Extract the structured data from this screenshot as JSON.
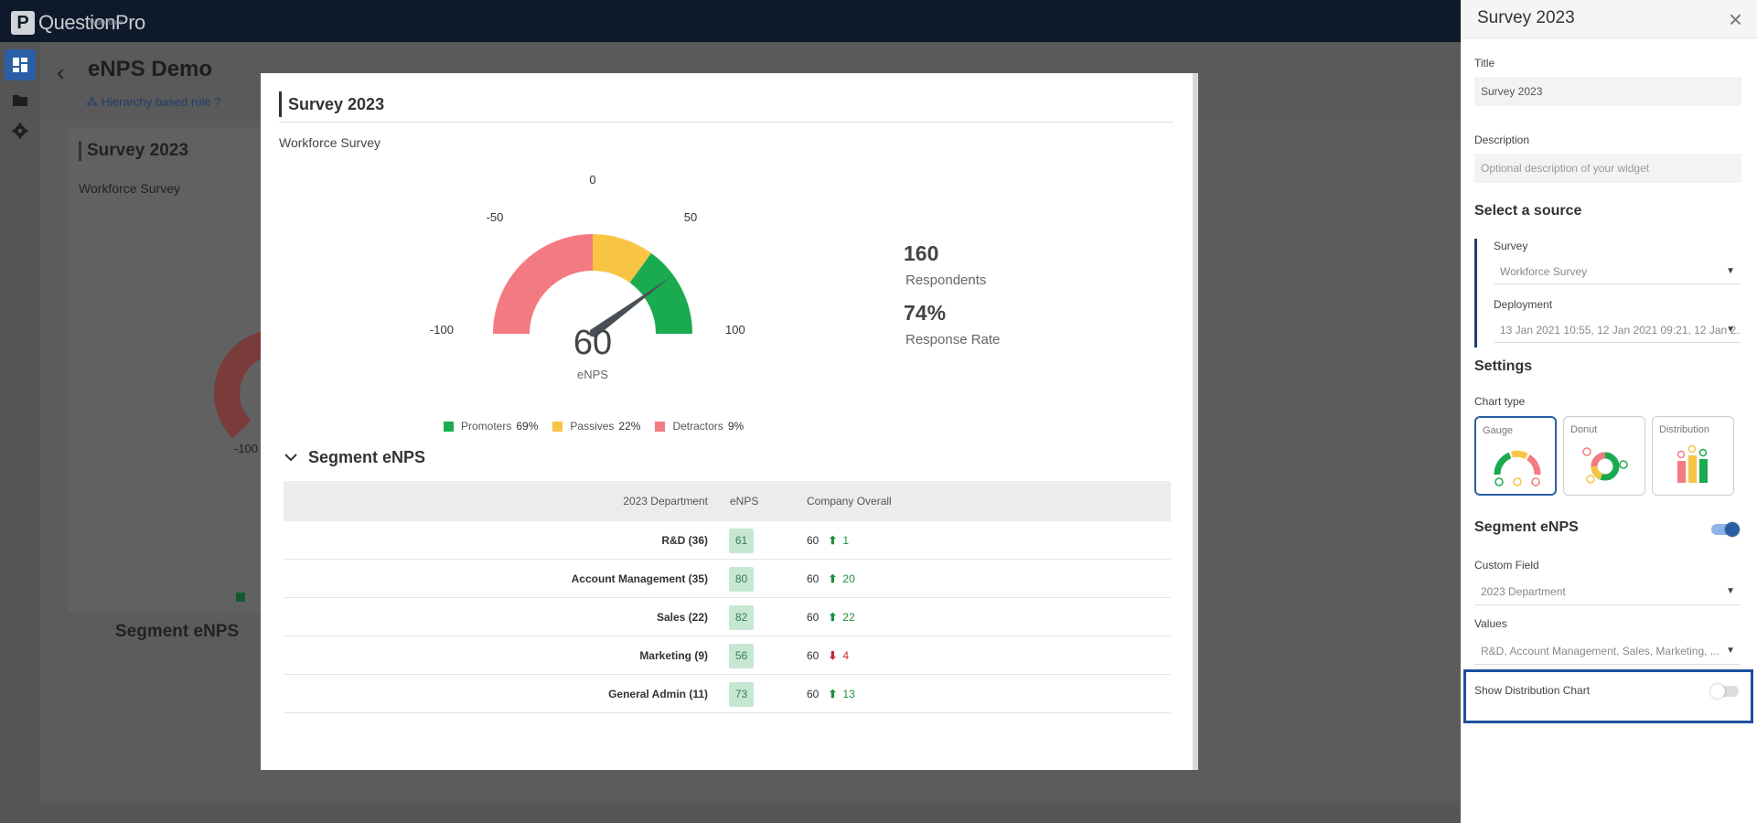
{
  "app": {
    "logo_letter": "P",
    "logo_text": "QuestionPro",
    "logo_sub": "Workforce"
  },
  "background": {
    "page_title": "eNPS Demo",
    "rule_link": "Hierarchy based rule",
    "card_title": "Survey 2023",
    "card_subtitle": "Workforce Survey",
    "label_100": "-100",
    "segment_title": "Segment eNPS"
  },
  "modal": {
    "title": "Survey 2023",
    "subtitle": "Workforce Survey",
    "gauge": {
      "value": "60",
      "value_label": "eNPS",
      "ticks": {
        "m100": "-100",
        "m50": "-50",
        "zero": "0",
        "p50": "50",
        "p100": "100"
      },
      "colors": {
        "detractors": "#f47a82",
        "passives": "#f8c443",
        "promoters": "#1aab50",
        "needle": "#4a4f57"
      }
    },
    "stats": {
      "respondents_value": "160",
      "respondents_label": "Respondents",
      "response_rate_value": "74%",
      "response_rate_label": "Response Rate"
    },
    "legend": [
      {
        "label": "Promoters",
        "value": "69%",
        "color": "#1aab50"
      },
      {
        "label": "Passives",
        "value": "22%",
        "color": "#f8c443"
      },
      {
        "label": "Detractors",
        "value": "9%",
        "color": "#f47a82"
      }
    ],
    "segment": {
      "title": "Segment eNPS",
      "headers": {
        "dept": "2023 Department",
        "enps": "eNPS",
        "company": "Company Overall"
      },
      "rows": [
        {
          "dept": "R&D (36)",
          "enps": "61",
          "company": "60",
          "dir": "up",
          "delta": "1"
        },
        {
          "dept": "Account Management (35)",
          "enps": "80",
          "company": "60",
          "dir": "up",
          "delta": "20"
        },
        {
          "dept": "Sales (22)",
          "enps": "82",
          "company": "60",
          "dir": "up",
          "delta": "22"
        },
        {
          "dept": "Marketing (9)",
          "enps": "56",
          "company": "60",
          "dir": "down",
          "delta": "4"
        },
        {
          "dept": "General Admin (11)",
          "enps": "73",
          "company": "60",
          "dir": "up",
          "delta": "13"
        }
      ]
    }
  },
  "panel": {
    "title": "Survey 2023",
    "title_label": "Title",
    "title_value": "Survey 2023",
    "description_label": "Description",
    "description_placeholder": "Optional description of your widget",
    "source_heading": "Select a source",
    "survey_label": "Survey",
    "survey_value": "Workforce Survey",
    "deployment_label": "Deployment",
    "deployment_value": "13 Jan 2021 10:55, 12 Jan 2021 09:21, 12 Jan 2...",
    "settings_heading": "Settings",
    "chart_type_label": "Chart type",
    "chart_types": [
      {
        "label": "Gauge",
        "selected": true
      },
      {
        "label": "Donut",
        "selected": false
      },
      {
        "label": "Distribution",
        "selected": false
      }
    ],
    "segment_label": "Segment eNPS",
    "segment_on": true,
    "custom_field_label": "Custom Field",
    "custom_field_value": "2023 Department",
    "values_label": "Values",
    "values_value": "R&D, Account Management, Sales, Marketing, ...",
    "show_distribution_label": "Show Distribution Chart",
    "show_distribution_on": false,
    "accent": "#2b5fa5"
  }
}
